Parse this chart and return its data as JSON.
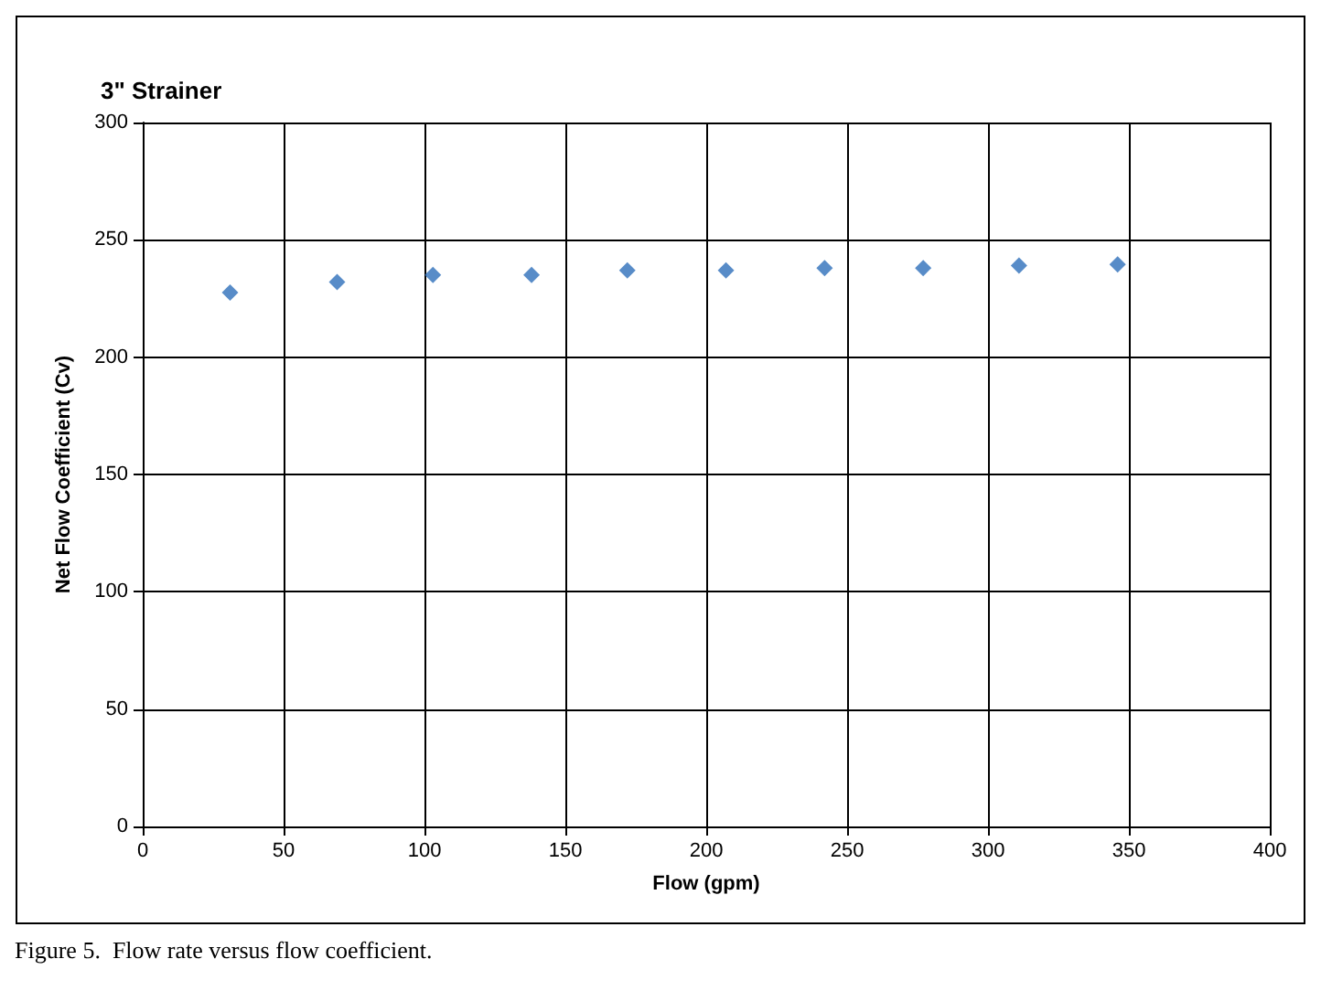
{
  "chart_data": {
    "type": "scatter",
    "title": "3\" Strainer",
    "xlabel": "Flow (gpm)",
    "ylabel": "Net Flow Coefficient (Cv)",
    "x": [
      31,
      69,
      103,
      138,
      172,
      207,
      242,
      277,
      311,
      346
    ],
    "series": [
      {
        "color": "#2e6fba",
        "values": [
          227.5,
          232,
          235,
          235,
          237,
          237,
          238,
          238,
          239,
          239.5
        ]
      }
    ],
    "xlim": [
      0,
      400
    ],
    "xticks": [
      0,
      50,
      100,
      150,
      200,
      250,
      300,
      350,
      400
    ],
    "ylim": [
      0,
      300
    ],
    "yticks": [
      0,
      50,
      100,
      150,
      200,
      250,
      300
    ],
    "grid": true,
    "marker": "diamond",
    "annotations": [
      "Figure 5.  Flow rate versus flow coefficient."
    ]
  }
}
